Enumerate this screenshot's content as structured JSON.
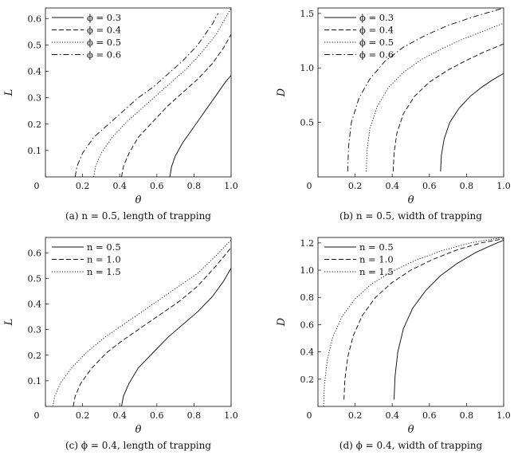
{
  "chart_data": [
    {
      "type": "line",
      "panel": "a",
      "caption": "(a) n = 0.5, length of trapping",
      "xlabel": "θ",
      "ylabel": "L",
      "xlim": [
        0,
        1.0
      ],
      "ylim": [
        0,
        0.64
      ],
      "xticks": [
        "0",
        "0.2",
        "0.4",
        "0.6",
        "0.8",
        "1.0"
      ],
      "xtick_values": [
        0,
        0.2,
        0.4,
        0.6,
        0.8,
        1.0
      ],
      "yticks": [
        "0.1",
        "0.2",
        "0.3",
        "0.4",
        "0.5",
        "0.6"
      ],
      "ytick_values": [
        0.1,
        0.2,
        0.3,
        0.4,
        0.5,
        0.6
      ],
      "legend": "top-left",
      "series": [
        {
          "name": "ϕ = 0.3",
          "dash": "solid",
          "x": [
            0.67,
            0.68,
            0.7,
            0.74,
            0.8,
            0.86,
            0.92,
            0.97,
            1.0
          ],
          "y": [
            0.0,
            0.04,
            0.08,
            0.13,
            0.19,
            0.25,
            0.31,
            0.36,
            0.385
          ]
        },
        {
          "name": "ϕ = 0.4",
          "dash": "dashed",
          "x": [
            0.41,
            0.42,
            0.45,
            0.5,
            0.58,
            0.66,
            0.74,
            0.82,
            0.9,
            0.96,
            1.0
          ],
          "y": [
            0.0,
            0.04,
            0.09,
            0.15,
            0.21,
            0.27,
            0.32,
            0.37,
            0.43,
            0.49,
            0.54
          ]
        },
        {
          "name": "ϕ = 0.5",
          "dash": "dotted",
          "x": [
            0.26,
            0.27,
            0.3,
            0.36,
            0.44,
            0.52,
            0.6,
            0.68,
            0.76,
            0.84,
            0.92,
            1.0
          ],
          "y": [
            0.0,
            0.04,
            0.09,
            0.15,
            0.21,
            0.26,
            0.31,
            0.36,
            0.41,
            0.47,
            0.54,
            0.64
          ]
        },
        {
          "name": "ϕ = 0.6",
          "dash": "dashdot",
          "x": [
            0.16,
            0.17,
            0.2,
            0.26,
            0.34,
            0.42,
            0.5,
            0.58,
            0.66,
            0.74,
            0.82,
            0.9,
            0.93
          ],
          "y": [
            0.0,
            0.04,
            0.09,
            0.15,
            0.2,
            0.25,
            0.3,
            0.34,
            0.39,
            0.44,
            0.5,
            0.58,
            0.62
          ]
        }
      ]
    },
    {
      "type": "line",
      "panel": "b",
      "caption": "(b) n = 0.5, width of trapping",
      "xlabel": "θ",
      "ylabel": "D",
      "xlim": [
        0,
        1.0
      ],
      "ylim": [
        0,
        1.55
      ],
      "xticks": [
        "0",
        "0.2",
        "0.4",
        "0.6",
        "0.8",
        "1.0"
      ],
      "xtick_values": [
        0,
        0.2,
        0.4,
        0.6,
        0.8,
        1.0
      ],
      "yticks": [
        "0.5",
        "1.0",
        "1.5"
      ],
      "ytick_values": [
        0.5,
        1.0,
        1.5
      ],
      "legend": "top-left",
      "series": [
        {
          "name": "ϕ = 0.3",
          "dash": "solid",
          "x": [
            0.66,
            0.665,
            0.68,
            0.71,
            0.76,
            0.82,
            0.88,
            0.94,
            1.0
          ],
          "y": [
            0.05,
            0.2,
            0.35,
            0.5,
            0.63,
            0.74,
            0.82,
            0.89,
            0.95
          ]
        },
        {
          "name": "ϕ = 0.4",
          "dash": "dashed",
          "x": [
            0.405,
            0.41,
            0.425,
            0.46,
            0.52,
            0.6,
            0.7,
            0.8,
            0.9,
            1.0
          ],
          "y": [
            0.05,
            0.22,
            0.4,
            0.58,
            0.74,
            0.87,
            0.98,
            1.07,
            1.15,
            1.22
          ]
        },
        {
          "name": "ϕ = 0.5",
          "dash": "dotted",
          "x": [
            0.26,
            0.265,
            0.28,
            0.32,
            0.38,
            0.46,
            0.56,
            0.66,
            0.76,
            0.88,
            1.0
          ],
          "y": [
            0.05,
            0.25,
            0.45,
            0.65,
            0.82,
            0.96,
            1.08,
            1.17,
            1.25,
            1.33,
            1.41
          ]
        },
        {
          "name": "ϕ = 0.6",
          "dash": "dashdot",
          "x": [
            0.16,
            0.165,
            0.18,
            0.22,
            0.28,
            0.36,
            0.46,
            0.58,
            0.7,
            0.84,
            1.0
          ],
          "y": [
            0.05,
            0.28,
            0.5,
            0.72,
            0.9,
            1.06,
            1.19,
            1.3,
            1.39,
            1.47,
            1.55
          ]
        }
      ]
    },
    {
      "type": "line",
      "panel": "c",
      "caption": "(c) ϕ = 0.4, length of trapping",
      "xlabel": "θ",
      "ylabel": "L",
      "xlim": [
        0,
        1.0
      ],
      "ylim": [
        0,
        0.66
      ],
      "xticks": [
        "0",
        "0.2",
        "0.4",
        "0.6",
        "0.8",
        "1.0"
      ],
      "xtick_values": [
        0,
        0.2,
        0.4,
        0.6,
        0.8,
        1.0
      ],
      "yticks": [
        "0.1",
        "0.2",
        "0.3",
        "0.4",
        "0.5",
        "0.6"
      ],
      "ytick_values": [
        0.1,
        0.2,
        0.3,
        0.4,
        0.5,
        0.6
      ],
      "legend": "top-left",
      "series": [
        {
          "name": "n = 0.5",
          "dash": "solid",
          "x": [
            0.41,
            0.42,
            0.45,
            0.5,
            0.58,
            0.66,
            0.74,
            0.82,
            0.9,
            0.96,
            1.0
          ],
          "y": [
            0.0,
            0.04,
            0.09,
            0.15,
            0.21,
            0.27,
            0.32,
            0.37,
            0.43,
            0.49,
            0.54
          ]
        },
        {
          "name": "n = 1.0",
          "dash": "dashed",
          "x": [
            0.15,
            0.16,
            0.19,
            0.25,
            0.33,
            0.42,
            0.52,
            0.62,
            0.72,
            0.82,
            0.92,
            1.0
          ],
          "y": [
            0.0,
            0.04,
            0.09,
            0.15,
            0.21,
            0.26,
            0.31,
            0.36,
            0.41,
            0.47,
            0.55,
            0.62
          ]
        },
        {
          "name": "n = 1.5",
          "dash": "dotted",
          "x": [
            0.04,
            0.05,
            0.08,
            0.14,
            0.22,
            0.32,
            0.42,
            0.52,
            0.62,
            0.72,
            0.82,
            0.92,
            1.0
          ],
          "y": [
            0.0,
            0.04,
            0.09,
            0.15,
            0.21,
            0.27,
            0.32,
            0.37,
            0.42,
            0.47,
            0.52,
            0.59,
            0.65
          ]
        }
      ]
    },
    {
      "type": "line",
      "panel": "d",
      "caption": "(d) ϕ = 0.4, width of trapping",
      "xlabel": "θ",
      "ylabel": "D",
      "xlim": [
        0,
        1.0
      ],
      "ylim": [
        0,
        1.24
      ],
      "xticks": [
        "0",
        "0.2",
        "0.4",
        "0.6",
        "0.8",
        "1.0"
      ],
      "xtick_values": [
        0,
        0.2,
        0.4,
        0.6,
        0.8,
        1.0
      ],
      "yticks": [
        "0.2",
        "0.4",
        "0.6",
        "0.8",
        "1.0",
        "1.2"
      ],
      "ytick_values": [
        0.2,
        0.4,
        0.6,
        0.8,
        1.0,
        1.2
      ],
      "legend": "top-left",
      "series": [
        {
          "name": "n = 0.5",
          "dash": "solid",
          "x": [
            0.41,
            0.415,
            0.43,
            0.46,
            0.51,
            0.58,
            0.66,
            0.75,
            0.85,
            0.93,
            1.0
          ],
          "y": [
            0.05,
            0.22,
            0.4,
            0.57,
            0.72,
            0.85,
            0.96,
            1.05,
            1.13,
            1.18,
            1.22
          ]
        },
        {
          "name": "n = 1.0",
          "dash": "dashed",
          "x": [
            0.14,
            0.145,
            0.16,
            0.19,
            0.24,
            0.31,
            0.4,
            0.5,
            0.62,
            0.75,
            0.88,
            1.0
          ],
          "y": [
            0.05,
            0.2,
            0.36,
            0.52,
            0.67,
            0.8,
            0.91,
            1.0,
            1.08,
            1.15,
            1.2,
            1.23
          ]
        },
        {
          "name": "n = 1.5",
          "dash": "dotted",
          "x": [
            0.03,
            0.035,
            0.05,
            0.08,
            0.13,
            0.2,
            0.29,
            0.4,
            0.52,
            0.66,
            0.82,
            1.0
          ],
          "y": [
            0.0,
            0.16,
            0.34,
            0.51,
            0.66,
            0.79,
            0.9,
            0.99,
            1.07,
            1.14,
            1.2,
            1.24
          ]
        }
      ]
    }
  ]
}
